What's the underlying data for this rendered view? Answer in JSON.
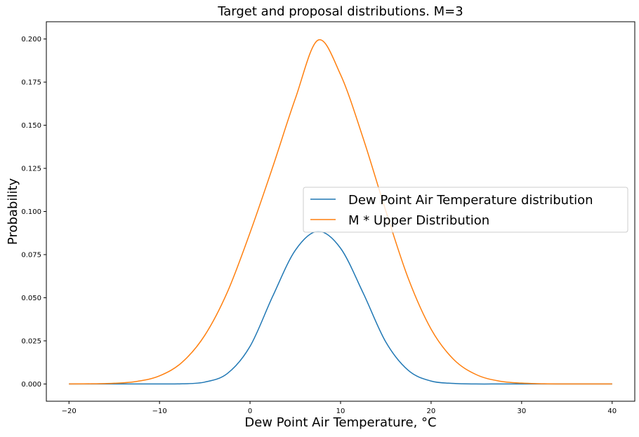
{
  "chart_data": {
    "type": "line",
    "title": "Target and proposal distributions. M=3",
    "xlabel": "Dew Point Air Temperature, °C",
    "ylabel": "Probability",
    "xlim": [
      -22.5,
      42.5
    ],
    "ylim": [
      -0.01,
      0.21
    ],
    "x_ticks": [
      -20,
      -10,
      0,
      10,
      20,
      30,
      40
    ],
    "x_tick_labels": [
      "−20",
      "−10",
      "0",
      "10",
      "20",
      "30",
      "40"
    ],
    "y_ticks": [
      0,
      0.025,
      0.05,
      0.075,
      0.1,
      0.125,
      0.15,
      0.175,
      0.2
    ],
    "y_tick_labels": [
      "0.000",
      "0.025",
      "0.050",
      "0.075",
      "0.100",
      "0.125",
      "0.150",
      "0.175",
      "0.200"
    ],
    "grid": false,
    "legend_position": "center-right",
    "x": [
      -20,
      -17.5,
      -15,
      -12.5,
      -10,
      -7.5,
      -5,
      -2.5,
      0,
      2.5,
      5,
      7.5,
      10,
      12.5,
      15,
      17.5,
      20,
      22.5,
      25,
      27.5,
      30,
      32.5,
      35,
      37.5,
      40
    ],
    "series": [
      {
        "name": "Dew Point Air Temperature distribution",
        "color": "#1f77b4",
        "values": [
          0.0,
          0.0,
          0.0,
          0.0,
          0.0,
          0.0001,
          0.0011,
          0.0061,
          0.0218,
          0.0508,
          0.0775,
          0.0885,
          0.0787,
          0.0527,
          0.0243,
          0.0078,
          0.0017,
          0.0003,
          0.0,
          0.0,
          0.0,
          0.0,
          0.0,
          0.0,
          0.0
        ]
      },
      {
        "name": "M * Upper Distribution",
        "color": "#ff7f0e",
        "values": [
          0.0,
          0.0001,
          0.0004,
          0.0015,
          0.0047,
          0.0126,
          0.0282,
          0.0533,
          0.0877,
          0.1257,
          0.1654,
          0.1993,
          0.1793,
          0.1424,
          0.1003,
          0.0609,
          0.0318,
          0.0142,
          0.0054,
          0.0017,
          0.0005,
          0.0001,
          0.0,
          0.0,
          0.0
        ]
      }
    ]
  }
}
